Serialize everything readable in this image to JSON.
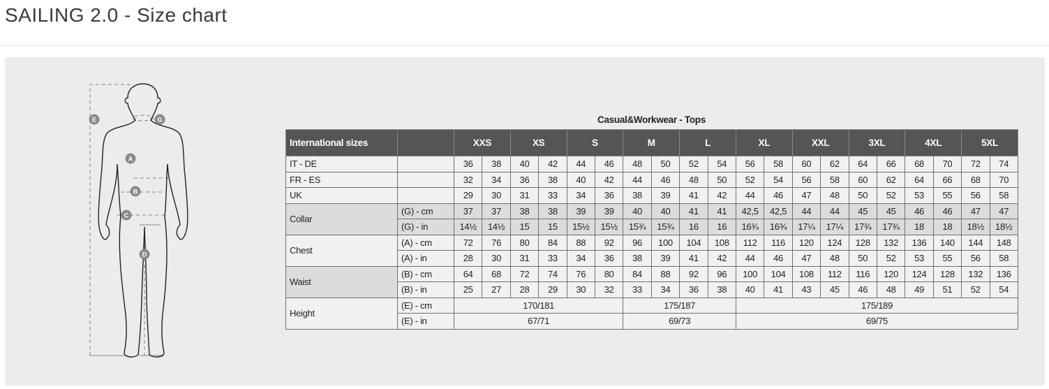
{
  "page_title": "SAILING 2.0 - Size chart",
  "figure": {
    "markers": [
      "A",
      "B",
      "C",
      "D",
      "E",
      "G"
    ]
  },
  "table": {
    "title": "Casual&Workwear - Tops",
    "header_label": "International sizes",
    "sizes": [
      "XXS",
      "XS",
      "S",
      "M",
      "L",
      "XL",
      "XXL",
      "3XL",
      "4XL",
      "5XL"
    ],
    "groups": [
      {
        "label": "IT - DE",
        "shade": "light",
        "rows": [
          {
            "sub": "",
            "values": [
              "36",
              "38",
              "40",
              "42",
              "44",
              "46",
              "48",
              "50",
              "52",
              "54",
              "56",
              "58",
              "60",
              "62",
              "64",
              "66",
              "68",
              "70",
              "72",
              "74"
            ]
          }
        ]
      },
      {
        "label": "FR - ES",
        "shade": "light",
        "rows": [
          {
            "sub": "",
            "values": [
              "32",
              "34",
              "36",
              "38",
              "40",
              "42",
              "44",
              "46",
              "48",
              "50",
              "52",
              "54",
              "56",
              "58",
              "60",
              "62",
              "64",
              "66",
              "68",
              "70"
            ]
          }
        ]
      },
      {
        "label": "UK",
        "shade": "light",
        "rows": [
          {
            "sub": "",
            "values": [
              "29",
              "30",
              "31",
              "33",
              "34",
              "36",
              "38",
              "39",
              "41",
              "42",
              "44",
              "46",
              "47",
              "48",
              "50",
              "52",
              "53",
              "55",
              "56",
              "58"
            ]
          }
        ]
      },
      {
        "label": "Collar",
        "shade": "dark",
        "rows": [
          {
            "sub": "(G) - cm",
            "values": [
              "37",
              "37",
              "38",
              "38",
              "39",
              "39",
              "40",
              "40",
              "41",
              "41",
              "42,5",
              "42,5",
              "44",
              "44",
              "45",
              "45",
              "46",
              "46",
              "47",
              "47"
            ]
          },
          {
            "sub": "(G)  - in",
            "values": [
              "14½",
              "14½",
              "15",
              "15",
              "15½",
              "15½",
              "15¾",
              "15¾",
              "16",
              "16",
              "16¾",
              "16¾",
              "17¼",
              "17¼",
              "17¾",
              "17¾",
              "18",
              "18",
              "18½",
              "18½"
            ]
          }
        ]
      },
      {
        "label": "Chest",
        "shade": "light",
        "rows": [
          {
            "sub": "(A) - cm",
            "values": [
              "72",
              "76",
              "80",
              "84",
              "88",
              "92",
              "96",
              "100",
              "104",
              "108",
              "112",
              "116",
              "120",
              "124",
              "128",
              "132",
              "136",
              "140",
              "144",
              "148"
            ]
          },
          {
            "sub": "(A) - in",
            "values": [
              "28",
              "30",
              "31",
              "33",
              "34",
              "36",
              "38",
              "39",
              "41",
              "42",
              "44",
              "46",
              "47",
              "48",
              "50",
              "52",
              "53",
              "55",
              "56",
              "58"
            ]
          }
        ]
      },
      {
        "label": "Waist",
        "shade": "light",
        "label_shade": "dark",
        "rows": [
          {
            "sub": "(B) - cm",
            "values": [
              "64",
              "68",
              "72",
              "74",
              "76",
              "80",
              "84",
              "88",
              "92",
              "96",
              "100",
              "104",
              "108",
              "112",
              "116",
              "120",
              "124",
              "128",
              "132",
              "136"
            ]
          },
          {
            "sub": "(B) - in",
            "values": [
              "25",
              "27",
              "28",
              "29",
              "30",
              "32",
              "33",
              "34",
              "36",
              "38",
              "40",
              "41",
              "43",
              "45",
              "46",
              "48",
              "49",
              "51",
              "52",
              "54"
            ]
          }
        ]
      },
      {
        "label": "Height",
        "shade": "light",
        "rows": [
          {
            "sub": "(E) - cm",
            "spans": [
              {
                "value": "170/181",
                "sizes": [
                  "XXS",
                  "XS",
                  "S"
                ]
              },
              {
                "value": "175/187",
                "sizes": [
                  "M",
                  "L"
                ]
              },
              {
                "value": "175/189",
                "sizes": [
                  "XL",
                  "XXL",
                  "3XL",
                  "4XL",
                  "5XL"
                ]
              }
            ]
          },
          {
            "sub": "(E) - in",
            "spans": [
              {
                "value": "67/71",
                "sizes": [
                  "XXS",
                  "XS",
                  "S"
                ]
              },
              {
                "value": "69/73",
                "sizes": [
                  "M",
                  "L"
                ]
              },
              {
                "value": "69/75",
                "sizes": [
                  "XL",
                  "XXL",
                  "3XL",
                  "4XL",
                  "5XL"
                ]
              }
            ]
          }
        ]
      }
    ]
  }
}
